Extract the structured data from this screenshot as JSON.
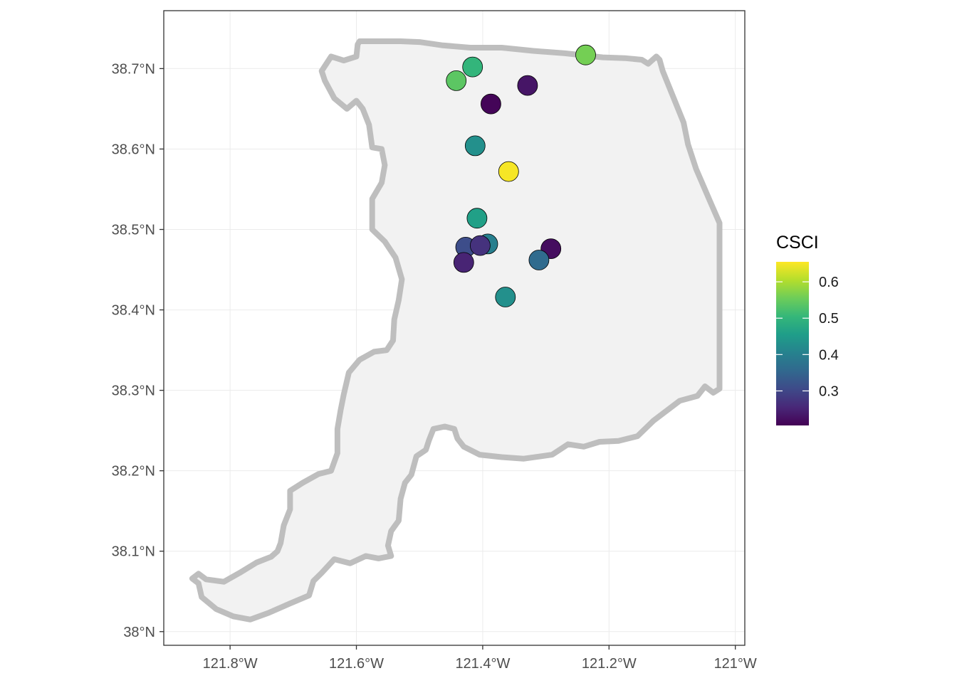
{
  "chart_data": {
    "type": "scatter",
    "subtype": "map",
    "title": "",
    "xlabel": "",
    "ylabel": "",
    "xlim": [
      -121.905,
      -120.985
    ],
    "ylim": [
      37.983,
      38.772
    ],
    "grid": true,
    "theme": "bw",
    "x_ticks": [
      {
        "value": -121.8,
        "label": "121.8°W"
      },
      {
        "value": -121.6,
        "label": "121.6°W"
      },
      {
        "value": -121.4,
        "label": "121.4°W"
      },
      {
        "value": -121.2,
        "label": "121.2°W"
      },
      {
        "value": -121.0,
        "label": "121°W"
      }
    ],
    "y_ticks": [
      {
        "value": 38.0,
        "label": "38°N"
      },
      {
        "value": 38.1,
        "label": "38.1°N"
      },
      {
        "value": 38.2,
        "label": "38.2°N"
      },
      {
        "value": 38.3,
        "label": "38.3°N"
      },
      {
        "value": 38.4,
        "label": "38.4°N"
      },
      {
        "value": 38.5,
        "label": "38.5°N"
      },
      {
        "value": 38.6,
        "label": "38.6°N"
      },
      {
        "value": 38.7,
        "label": "38.7°N"
      }
    ],
    "boundary": {
      "fill": "#f2f2f2",
      "stroke": "#bebebe",
      "coordinates": [
        [
          -121.595,
          38.734
        ],
        [
          -121.53,
          38.734
        ],
        [
          -121.5,
          38.733
        ],
        [
          -121.465,
          38.729
        ],
        [
          -121.42,
          38.726
        ],
        [
          -121.37,
          38.726
        ],
        [
          -121.32,
          38.722
        ],
        [
          -121.27,
          38.719
        ],
        [
          -121.21,
          38.714
        ],
        [
          -121.175,
          38.713
        ],
        [
          -121.148,
          38.711
        ],
        [
          -121.138,
          38.706
        ],
        [
          -121.125,
          38.715
        ],
        [
          -121.12,
          38.711
        ],
        [
          -121.115,
          38.697
        ],
        [
          -121.1,
          38.668
        ],
        [
          -121.082,
          38.633
        ],
        [
          -121.075,
          38.606
        ],
        [
          -121.062,
          38.575
        ],
        [
          -121.04,
          38.535
        ],
        [
          -121.025,
          38.508
        ],
        [
          -121.025,
          38.47
        ],
        [
          -121.025,
          38.4
        ],
        [
          -121.025,
          38.35
        ],
        [
          -121.025,
          38.302
        ],
        [
          -121.035,
          38.297
        ],
        [
          -121.048,
          38.305
        ],
        [
          -121.06,
          38.293
        ],
        [
          -121.088,
          38.287
        ],
        [
          -121.13,
          38.262
        ],
        [
          -121.155,
          38.243
        ],
        [
          -121.185,
          38.237
        ],
        [
          -121.215,
          38.236
        ],
        [
          -121.24,
          38.23
        ],
        [
          -121.265,
          38.233
        ],
        [
          -121.29,
          38.22
        ],
        [
          -121.335,
          38.215
        ],
        [
          -121.37,
          38.217
        ],
        [
          -121.405,
          38.22
        ],
        [
          -121.43,
          38.23
        ],
        [
          -121.44,
          38.24
        ],
        [
          -121.445,
          38.252
        ],
        [
          -121.46,
          38.255
        ],
        [
          -121.478,
          38.252
        ],
        [
          -121.485,
          38.238
        ],
        [
          -121.49,
          38.226
        ],
        [
          -121.505,
          38.218
        ],
        [
          -121.513,
          38.195
        ],
        [
          -121.523,
          38.185
        ],
        [
          -121.53,
          38.165
        ],
        [
          -121.533,
          38.138
        ],
        [
          -121.545,
          38.125
        ],
        [
          -121.55,
          38.107
        ],
        [
          -121.545,
          38.094
        ],
        [
          -121.565,
          38.091
        ],
        [
          -121.585,
          38.094
        ],
        [
          -121.61,
          38.085
        ],
        [
          -121.635,
          38.09
        ],
        [
          -121.655,
          38.073
        ],
        [
          -121.668,
          38.063
        ],
        [
          -121.675,
          38.045
        ],
        [
          -121.705,
          38.035
        ],
        [
          -121.74,
          38.023
        ],
        [
          -121.768,
          38.015
        ],
        [
          -121.795,
          38.019
        ],
        [
          -121.822,
          38.028
        ],
        [
          -121.845,
          38.043
        ],
        [
          -121.85,
          38.06
        ],
        [
          -121.86,
          38.066
        ],
        [
          -121.85,
          38.072
        ],
        [
          -121.838,
          38.065
        ],
        [
          -121.81,
          38.062
        ],
        [
          -121.785,
          38.073
        ],
        [
          -121.758,
          38.086
        ],
        [
          -121.735,
          38.093
        ],
        [
          -121.725,
          38.1
        ],
        [
          -121.72,
          38.11
        ],
        [
          -121.715,
          38.132
        ],
        [
          -121.705,
          38.152
        ],
        [
          -121.705,
          38.175
        ],
        [
          -121.685,
          38.185
        ],
        [
          -121.66,
          38.196
        ],
        [
          -121.64,
          38.2
        ],
        [
          -121.63,
          38.222
        ],
        [
          -121.63,
          38.252
        ],
        [
          -121.625,
          38.275
        ],
        [
          -121.62,
          38.295
        ],
        [
          -121.612,
          38.322
        ],
        [
          -121.595,
          38.338
        ],
        [
          -121.572,
          38.348
        ],
        [
          -121.552,
          38.35
        ],
        [
          -121.542,
          38.362
        ],
        [
          -121.54,
          38.388
        ],
        [
          -121.533,
          38.412
        ],
        [
          -121.528,
          38.438
        ],
        [
          -121.538,
          38.465
        ],
        [
          -121.555,
          38.485
        ],
        [
          -121.575,
          38.5
        ],
        [
          -121.575,
          38.522
        ],
        [
          -121.575,
          38.538
        ],
        [
          -121.56,
          38.558
        ],
        [
          -121.555,
          38.58
        ],
        [
          -121.56,
          38.6
        ],
        [
          -121.575,
          38.602
        ],
        [
          -121.58,
          38.63
        ],
        [
          -121.59,
          38.65
        ],
        [
          -121.6,
          38.66
        ],
        [
          -121.615,
          38.65
        ],
        [
          -121.635,
          38.663
        ],
        [
          -121.65,
          38.685
        ],
        [
          -121.655,
          38.697
        ],
        [
          -121.64,
          38.715
        ],
        [
          -121.62,
          38.71
        ],
        [
          -121.6,
          38.715
        ],
        [
          -121.598,
          38.73
        ]
      ]
    },
    "points": [
      {
        "lon": -121.237,
        "lat": 38.717,
        "csci": 0.56
      },
      {
        "lon": -121.416,
        "lat": 38.702,
        "csci": 0.5
      },
      {
        "lon": -121.442,
        "lat": 38.685,
        "csci": 0.54
      },
      {
        "lon": -121.329,
        "lat": 38.679,
        "csci": 0.23
      },
      {
        "lon": -121.387,
        "lat": 38.656,
        "csci": 0.21
      },
      {
        "lon": -121.412,
        "lat": 38.604,
        "csci": 0.43
      },
      {
        "lon": -121.359,
        "lat": 38.572,
        "csci": 0.65
      },
      {
        "lon": -121.409,
        "lat": 38.514,
        "csci": 0.46
      },
      {
        "lon": -121.392,
        "lat": 38.482,
        "csci": 0.4
      },
      {
        "lon": -121.427,
        "lat": 38.478,
        "csci": 0.31
      },
      {
        "lon": -121.404,
        "lat": 38.48,
        "csci": 0.27
      },
      {
        "lon": -121.292,
        "lat": 38.476,
        "csci": 0.22
      },
      {
        "lon": -121.311,
        "lat": 38.462,
        "csci": 0.36
      },
      {
        "lon": -121.43,
        "lat": 38.459,
        "csci": 0.25
      },
      {
        "lon": -121.364,
        "lat": 38.416,
        "csci": 0.43
      }
    ]
  },
  "legend": {
    "title": "CSCI",
    "placement": "right",
    "min": 0.205,
    "max": 0.655,
    "breaks": [
      {
        "value": 0.3,
        "label": "0.3"
      },
      {
        "value": 0.4,
        "label": "0.4"
      },
      {
        "value": 0.5,
        "label": "0.5"
      },
      {
        "value": 0.6,
        "label": "0.6"
      }
    ],
    "palette": [
      "#440154",
      "#482878",
      "#3E4A89",
      "#31688E",
      "#26828E",
      "#1F9E89",
      "#35B779",
      "#6DCD59",
      "#B4DE2C",
      "#FDE725"
    ]
  },
  "colors": {
    "panel_border": "#333333",
    "grid": "#ebebeb",
    "tick": "#333333",
    "point_outline": "#000000"
  }
}
